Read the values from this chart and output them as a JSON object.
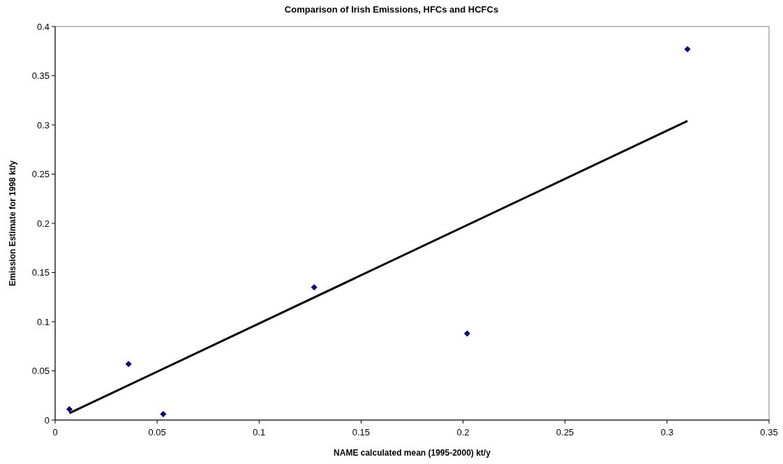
{
  "chart_data": {
    "type": "scatter",
    "title": "Comparison of Irish Emissions, HFCs and HCFCs",
    "xlabel": "NAME calculated mean (1995-2000) kt/y",
    "ylabel": "Emission Estimate for 1998 kt/y",
    "x": [
      0.007,
      0.036,
      0.053,
      0.127,
      0.202,
      0.31
    ],
    "series": [
      {
        "color": "#000080",
        "values": [
          0.011,
          0.057,
          0.006,
          0.135,
          0.088,
          0.377
        ],
        "marker": "diamond"
      },
      {
        "type": "line",
        "color": "#000000",
        "x": [
          0.007,
          0.31
        ],
        "values": [
          0.007,
          0.304
        ],
        "marker": "none"
      }
    ],
    "xlim": [
      0,
      0.35
    ],
    "xticks": [
      0,
      0.05,
      0.1,
      0.15,
      0.2,
      0.25,
      0.3,
      0.35
    ],
    "ylim": [
      0,
      0.4
    ],
    "yticks": [
      0,
      0.05,
      0.1,
      0.15,
      0.2,
      0.25,
      0.3,
      0.35,
      0.4
    ],
    "grid": false
  }
}
